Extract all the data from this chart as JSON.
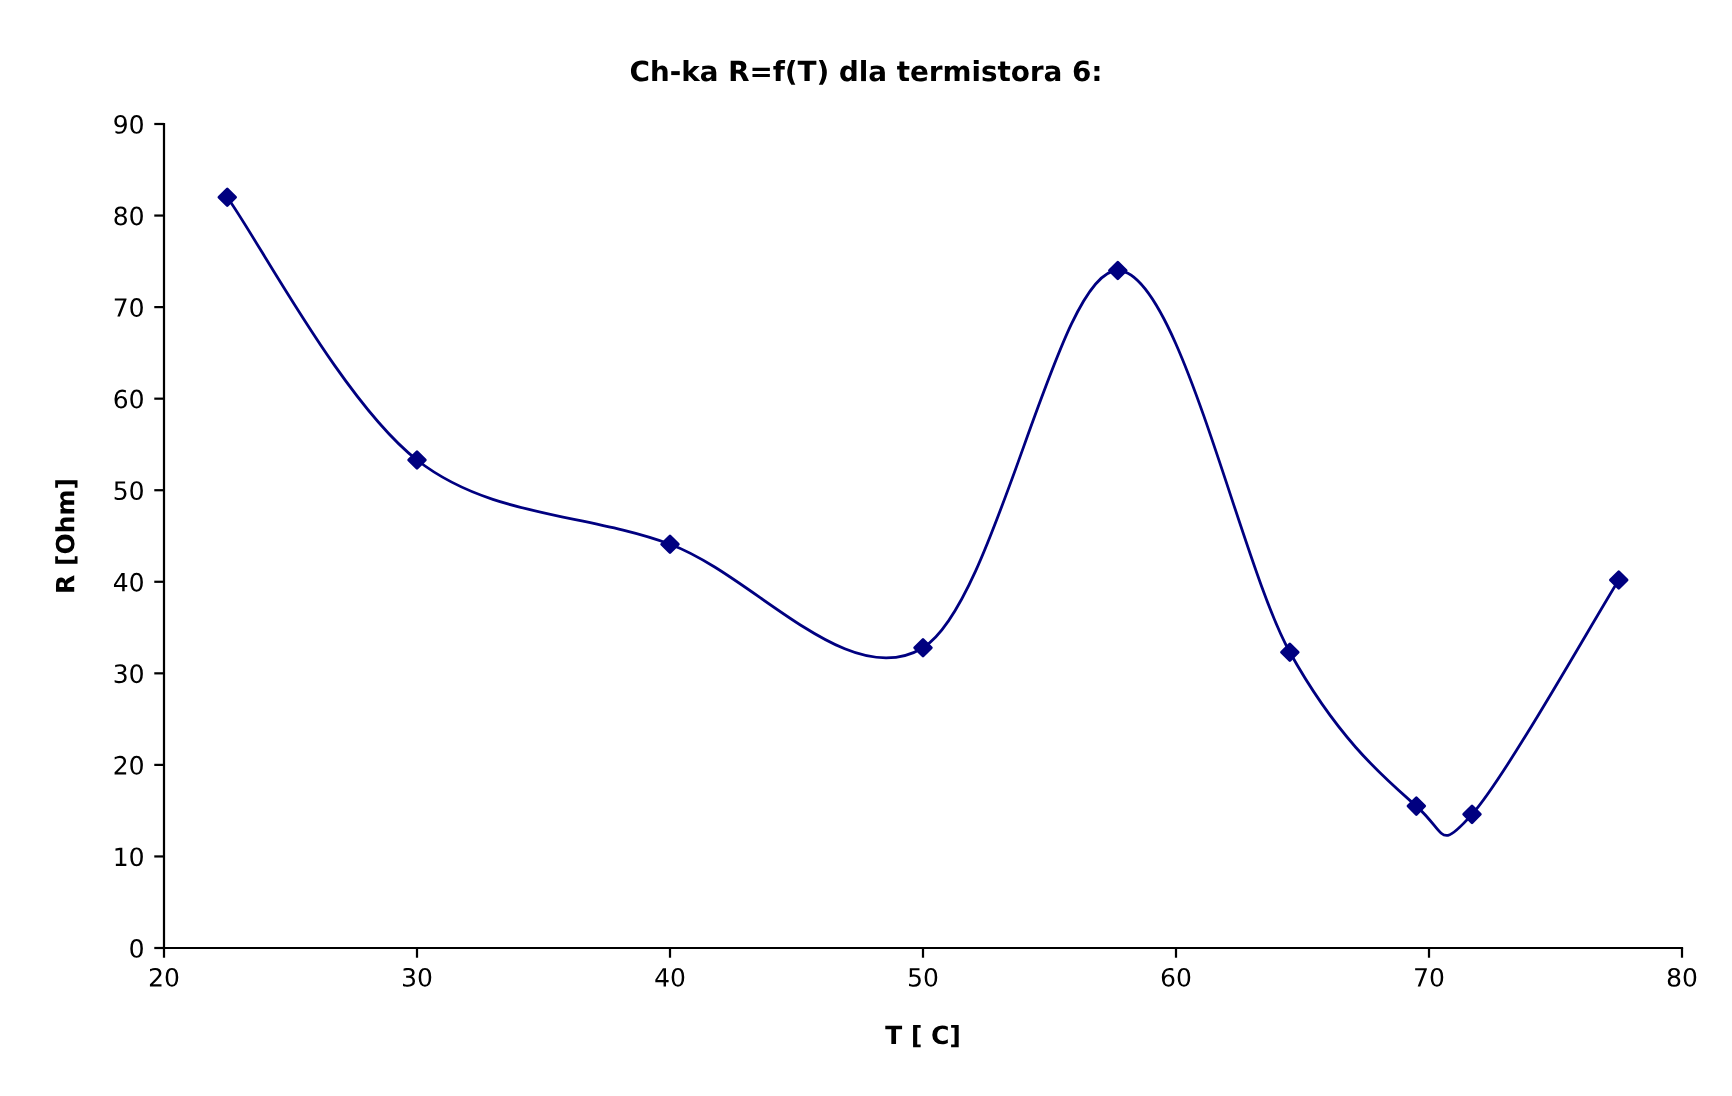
{
  "chart_data": {
    "type": "line",
    "title": "Ch-ka R=f(T) dla termistora 6:",
    "xlabel": "T [ C]",
    "ylabel": "R [Ohm]",
    "x": [
      22.5,
      30,
      40,
      50,
      57.7,
      64.5,
      69.5,
      71.7,
      77.5
    ],
    "series": [
      {
        "color": "#000080",
        "values": [
          82,
          53.3,
          44.1,
          32.8,
          74,
          32.3,
          15.5,
          14.6,
          40.2
        ]
      }
    ],
    "xlim": [
      20,
      80
    ],
    "xticks": [
      20,
      30,
      40,
      50,
      60,
      70,
      80
    ],
    "ylim": [
      0,
      90
    ],
    "yticks": [
      0,
      10,
      20,
      30,
      40,
      50,
      60,
      70,
      80,
      90
    ],
    "grid": false,
    "legend": false,
    "marker": "diamond",
    "line_style": "solid"
  }
}
